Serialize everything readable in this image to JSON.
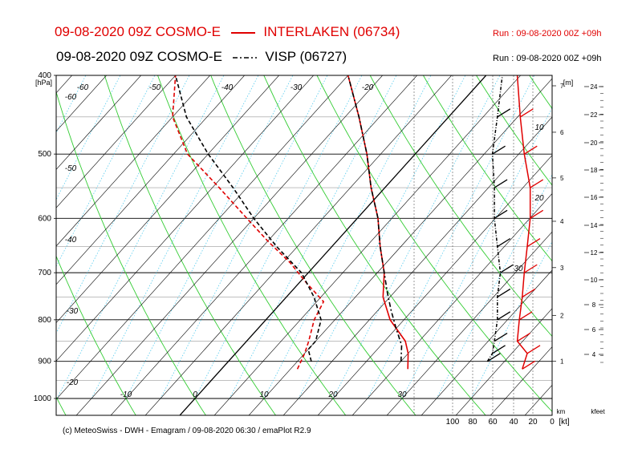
{
  "header": {
    "line1_left": "09-08-2020 09Z COSMO-E",
    "line1_series": "INTERLAKEN (06734)",
    "line1_run": "Run : 09-08-2020 00Z +09h",
    "line2_left": "09-08-2020 09Z COSMO-E",
    "line2_series": "VISP (06727)",
    "line2_run": "Run : 09-08-2020 00Z +09h"
  },
  "footer": "(c) MeteoSwiss - DWH - Emagram / 09-08-2020  06:30 / emaPlot R2.9",
  "colors": {
    "interlaken": "#e00000",
    "visp": "#000000",
    "isotherm": "#000000",
    "dry_adiabat": "#33cc33",
    "mixing_ratio": "#55ccee",
    "isobar": "#000000"
  },
  "chart_data": {
    "type": "line",
    "title": "",
    "ylabel": "[hPa]",
    "y_scale": "log",
    "ylim": [
      1000,
      400
    ],
    "pressure_ticks": [
      "400",
      "500",
      "600",
      "700",
      "800",
      "900",
      "1000"
    ],
    "temperature_labels": [
      "-60",
      "-50",
      "-40",
      "-30",
      "-20",
      "-10",
      "0",
      "10",
      "20",
      "30"
    ],
    "theta_labels": [
      "-60",
      "-50",
      "-40",
      "-30",
      "-20",
      "-60",
      "-50",
      "-40",
      "-30",
      "-20",
      "-10",
      "0",
      "10",
      "20",
      "30"
    ],
    "height_m_label": "[m]",
    "height_m_ticks": [
      "7",
      "6",
      "5",
      "4",
      "3",
      "2",
      "1"
    ],
    "height_kft_ticks": [
      "24",
      "22",
      "20",
      "18",
      "16",
      "14",
      "12",
      "10",
      "8",
      "6",
      "4"
    ],
    "height_km_label": "km",
    "height_kft_label": "kfeet",
    "wind_axis_ticks": [
      "100",
      "80",
      "60",
      "40",
      "20",
      "0"
    ],
    "wind_axis_unit": "[kt]",
    "wind_labels_on_axis": [
      "10",
      "20",
      "30"
    ],
    "series": [
      {
        "name": "INTERLAKEN (06734)",
        "style": "solid",
        "temperature": [
          [
            920,
            27
          ],
          [
            880,
            25
          ],
          [
            850,
            23
          ],
          [
            800,
            18
          ],
          [
            750,
            14
          ],
          [
            700,
            11
          ],
          [
            650,
            7
          ],
          [
            600,
            3
          ],
          [
            550,
            -2
          ],
          [
            500,
            -7
          ],
          [
            450,
            -13
          ],
          [
            400,
            -20
          ]
        ],
        "dewpoint": [
          [
            920,
            11
          ],
          [
            880,
            10
          ],
          [
            850,
            9
          ],
          [
            800,
            7
          ],
          [
            760,
            6
          ],
          [
            720,
            1
          ],
          [
            680,
            -4
          ],
          [
            640,
            -10
          ],
          [
            600,
            -16
          ],
          [
            550,
            -24
          ],
          [
            500,
            -33
          ],
          [
            450,
            -40
          ],
          [
            400,
            -45
          ]
        ]
      },
      {
        "name": "VISP (06727)",
        "style": "dashdot",
        "temperature": [
          [
            900,
            25
          ],
          [
            860,
            23
          ],
          [
            820,
            20
          ],
          [
            780,
            17
          ],
          [
            740,
            14
          ],
          [
            700,
            11
          ],
          [
            650,
            7
          ],
          [
            600,
            3
          ],
          [
            550,
            -2
          ],
          [
            500,
            -7
          ],
          [
            450,
            -13
          ],
          [
            400,
            -20
          ]
        ],
        "dewpoint": [
          [
            900,
            12
          ],
          [
            870,
            10
          ],
          [
            850,
            10
          ],
          [
            800,
            8
          ],
          [
            750,
            4
          ],
          [
            700,
            -1
          ],
          [
            650,
            -8
          ],
          [
            600,
            -15
          ],
          [
            550,
            -22
          ],
          [
            500,
            -30
          ],
          [
            450,
            -38
          ],
          [
            400,
            -45
          ]
        ]
      }
    ],
    "wind_interlaken": [
      [
        920,
        30
      ],
      [
        880,
        25
      ],
      [
        850,
        35
      ],
      [
        800,
        33
      ],
      [
        750,
        30
      ],
      [
        700,
        28
      ],
      [
        650,
        25
      ],
      [
        600,
        22
      ],
      [
        550,
        22
      ],
      [
        500,
        28
      ],
      [
        450,
        32
      ],
      [
        400,
        35
      ]
    ],
    "wind_visp": [
      [
        900,
        65
      ],
      [
        880,
        60
      ],
      [
        850,
        58
      ],
      [
        800,
        55
      ],
      [
        750,
        55
      ],
      [
        700,
        52
      ],
      [
        650,
        55
      ],
      [
        600,
        58
      ],
      [
        550,
        58
      ],
      [
        500,
        60
      ],
      [
        450,
        55
      ],
      [
        400,
        50
      ]
    ]
  }
}
